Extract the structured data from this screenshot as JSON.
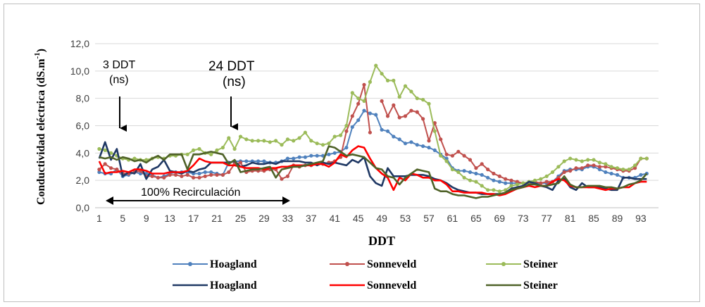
{
  "chart_data": {
    "type": "line",
    "ylabel": "Conductividad eléctrica (dS.m",
    "ylabel_superscript": "-1",
    "ylabel_close": ")",
    "xlabel": "DDT",
    "ylim": [
      0,
      12
    ],
    "y_ticks": [
      "0,0",
      "2,0",
      "4,0",
      "6,0",
      "8,0",
      "10,0",
      "12,0"
    ],
    "x_ticks": [
      "1",
      "5",
      "9",
      "13",
      "17",
      "21",
      "25",
      "29",
      "33",
      "37",
      "41",
      "45",
      "49",
      "53",
      "57",
      "61",
      "65",
      "69",
      "73",
      "77",
      "81",
      "85",
      "89",
      "93"
    ],
    "x": [
      1,
      2,
      3,
      4,
      5,
      6,
      7,
      8,
      9,
      10,
      11,
      12,
      13,
      14,
      15,
      16,
      17,
      18,
      19,
      20,
      21,
      22,
      23,
      24,
      25,
      26,
      27,
      28,
      29,
      30,
      31,
      32,
      33,
      34,
      35,
      36,
      37,
      38,
      39,
      40,
      41,
      42,
      43,
      44,
      45,
      46,
      47,
      48,
      49,
      50,
      51,
      52,
      53,
      54,
      55,
      56,
      57,
      58,
      59,
      60,
      61,
      62,
      63,
      64,
      65,
      66,
      67,
      68,
      69,
      70,
      71,
      72,
      73,
      74,
      75,
      76,
      77,
      78,
      79,
      80,
      81,
      82,
      83,
      84,
      85,
      86,
      87,
      88,
      89,
      90,
      91,
      92,
      93,
      94
    ],
    "series": [
      {
        "name": "Hoagland",
        "color": "#4f81bd",
        "marker": true,
        "values": [
          2.6,
          2.5,
          2.5,
          2.8,
          2.3,
          2.4,
          2.6,
          2.5,
          2.5,
          2.4,
          2.2,
          2.3,
          2.5,
          2.6,
          2.6,
          2.6,
          2.5,
          2.5,
          2.6,
          2.6,
          2.5,
          2.4,
          3.3,
          3.4,
          3.4,
          3.4,
          3.4,
          3.4,
          3.4,
          3.3,
          3.3,
          3.4,
          3.6,
          3.6,
          3.7,
          3.7,
          3.8,
          3.8,
          3.8,
          3.9,
          4.0,
          4.1,
          4.4,
          5.9,
          6.4,
          7.1,
          6.9,
          6.8,
          5.7,
          5.6,
          5.2,
          5.0,
          4.7,
          4.8,
          4.6,
          4.5,
          4.4,
          4.2,
          3.9,
          3.6,
          2.9,
          2.7,
          2.7,
          2.6,
          2.5,
          2.4,
          2.2,
          2.0,
          1.9,
          1.8,
          1.8,
          1.8,
          1.8,
          1.8,
          1.8,
          1.8,
          1.8,
          1.9,
          2.3,
          2.7,
          2.8,
          2.8,
          2.8,
          3.0,
          3.0,
          2.8,
          2.6,
          2.5,
          2.4,
          2.2,
          2.2,
          2.2,
          2.4,
          2.5
        ]
      },
      {
        "name": "Sonneveld",
        "color": "#c0504d",
        "marker": true,
        "values": [
          2.8,
          3.2,
          2.9,
          2.8,
          2.5,
          2.5,
          2.6,
          2.7,
          2.3,
          2.3,
          2.2,
          2.2,
          2.4,
          2.4,
          2.3,
          2.4,
          2.2,
          2.2,
          2.3,
          2.4,
          2.4,
          2.4,
          2.6,
          3.2,
          3.3,
          2.6,
          2.7,
          2.7,
          2.7,
          2.8,
          2.8,
          2.1,
          2.3,
          3.1,
          3.0,
          3.1,
          3.1,
          3.2,
          3.2,
          3.3,
          3.4,
          3.7,
          5.6,
          6.7,
          7.6,
          9.0,
          5.5,
          null,
          7.8,
          6.7,
          7.5,
          6.6,
          6.7,
          7.1,
          7.0,
          6.5,
          4.9,
          6.2,
          5.0,
          3.9,
          3.8,
          4.1,
          3.8,
          3.5,
          2.9,
          3.2,
          2.8,
          2.5,
          2.3,
          2.1,
          2.0,
          1.9,
          1.8,
          1.8,
          1.9,
          1.8,
          1.9,
          1.9,
          2.2,
          2.6,
          2.7,
          2.9,
          2.9,
          3.1,
          3.1,
          3.0,
          3.0,
          2.9,
          2.8,
          2.7,
          2.7,
          2.9,
          3.6,
          3.6
        ]
      },
      {
        "name": "Steiner",
        "color": "#9bbb59",
        "marker": true,
        "values": [
          4.3,
          4.2,
          4.0,
          3.8,
          3.6,
          3.5,
          3.6,
          3.5,
          3.5,
          3.6,
          3.7,
          3.6,
          3.8,
          3.8,
          3.9,
          3.9,
          4.2,
          4.3,
          4.0,
          3.9,
          4.2,
          4.4,
          5.1,
          4.3,
          5.2,
          5.0,
          4.9,
          4.9,
          4.9,
          4.8,
          4.9,
          4.6,
          5.0,
          4.9,
          5.1,
          5.5,
          4.9,
          4.7,
          4.6,
          4.7,
          5.2,
          5.3,
          6.0,
          8.4,
          8.0,
          7.8,
          9.2,
          10.4,
          9.8,
          9.3,
          9.3,
          8.1,
          8.9,
          8.5,
          8.0,
          7.9,
          7.6,
          5.6,
          3.8,
          3.4,
          2.8,
          2.6,
          2.2,
          2.0,
          1.9,
          1.6,
          1.3,
          1.3,
          1.2,
          1.3,
          1.6,
          1.7,
          1.8,
          1.9,
          2.0,
          2.1,
          2.3,
          2.6,
          3.0,
          3.4,
          3.6,
          3.5,
          3.4,
          3.5,
          3.5,
          3.3,
          3.2,
          3.0,
          2.9,
          2.8,
          2.8,
          3.1,
          3.6,
          3.6
        ]
      },
      {
        "name": "Hoagland",
        "color": "#1f3864",
        "marker": false,
        "values": [
          3.6,
          4.8,
          3.5,
          4.3,
          2.3,
          2.6,
          2.5,
          3.2,
          2.1,
          2.8,
          3.0,
          3.5,
          2.7,
          2.6,
          2.5,
          2.7,
          2.6,
          2.8,
          2.9,
          3.3,
          3.3,
          3.3,
          3.3,
          3.4,
          3.0,
          3.1,
          3.3,
          3.2,
          3.2,
          3.3,
          3.2,
          3.4,
          3.4,
          3.4,
          3.4,
          3.3,
          3.3,
          3.1,
          3.3,
          3.2,
          3.3,
          3.2,
          3.1,
          3.5,
          3.3,
          3.7,
          2.3,
          1.8,
          1.6,
          2.9,
          2.3,
          2.3,
          2.3,
          2.4,
          2.4,
          2.4,
          2.3,
          2.1,
          2.0,
          1.8,
          1.5,
          1.3,
          1.2,
          1.1,
          1.1,
          1.0,
          1.0,
          1.0,
          1.0,
          1.1,
          1.4,
          1.5,
          1.6,
          1.9,
          1.8,
          1.6,
          1.5,
          1.3,
          2.0,
          2.1,
          1.5,
          1.3,
          1.8,
          1.5,
          1.5,
          1.5,
          1.4,
          1.3,
          1.3,
          2.2,
          2.2,
          2.1,
          2.1,
          2.1
        ]
      },
      {
        "name": "Sonneveld",
        "color": "#ff0000",
        "marker": false,
        "values": [
          3.4,
          2.5,
          2.6,
          2.6,
          2.7,
          2.6,
          2.8,
          2.8,
          2.7,
          2.5,
          2.5,
          2.5,
          2.6,
          2.6,
          2.6,
          2.7,
          3.1,
          3.6,
          3.4,
          3.3,
          3.3,
          3.3,
          3.1,
          3.1,
          3.0,
          2.9,
          2.9,
          2.9,
          2.8,
          2.9,
          2.9,
          3.0,
          3.0,
          3.1,
          3.1,
          3.1,
          3.1,
          3.2,
          3.2,
          3.0,
          3.3,
          3.9,
          3.7,
          4.2,
          4.5,
          4.4,
          3.6,
          2.9,
          2.5,
          2.2,
          1.3,
          2.2,
          2.0,
          2.5,
          2.4,
          2.2,
          2.2,
          2.0,
          2.0,
          1.7,
          1.2,
          1.2,
          1.1,
          1.1,
          1.1,
          1.1,
          1.0,
          1.0,
          0.9,
          1.0,
          1.2,
          1.4,
          1.5,
          1.6,
          1.5,
          1.6,
          1.6,
          1.9,
          2.1,
          2.0,
          1.6,
          1.5,
          1.5,
          1.5,
          1.5,
          1.4,
          1.3,
          1.4,
          1.4,
          1.5,
          1.5,
          1.8,
          1.9,
          1.9
        ]
      },
      {
        "name": "Steiner",
        "color": "#4f6228",
        "marker": false,
        "values": [
          3.7,
          3.6,
          3.7,
          3.5,
          3.7,
          3.6,
          3.4,
          3.5,
          3.3,
          3.6,
          3.8,
          3.5,
          3.9,
          3.9,
          3.9,
          2.8,
          3.9,
          3.9,
          4.0,
          4.1,
          4.0,
          3.9,
          3.2,
          3.5,
          2.6,
          2.7,
          2.8,
          2.8,
          2.9,
          3.0,
          2.2,
          2.8,
          2.9,
          3.0,
          3.0,
          3.1,
          3.2,
          3.3,
          3.4,
          4.5,
          4.4,
          4.1,
          3.8,
          3.9,
          3.8,
          3.7,
          3.3,
          2.9,
          2.8,
          2.3,
          2.2,
          1.7,
          2.2,
          2.5,
          2.8,
          2.7,
          2.6,
          1.4,
          1.2,
          1.2,
          1.0,
          0.9,
          0.9,
          0.8,
          0.7,
          0.8,
          0.8,
          0.9,
          1.0,
          1.1,
          1.3,
          1.4,
          1.5,
          1.7,
          1.7,
          1.6,
          1.6,
          1.7,
          1.8,
          2.3,
          1.7,
          1.5,
          1.5,
          1.6,
          1.6,
          1.6,
          1.5,
          1.5,
          1.4,
          1.5,
          1.7,
          1.8,
          2.0,
          2.5
        ]
      }
    ],
    "annotations": {
      "ddt3_line1": "3 DDT",
      "ddt3_line2": "(ns)",
      "ddt24_line1": "24 DDT",
      "ddt24_line2": "(ns)",
      "recirculation": "100% Recirculación"
    }
  }
}
